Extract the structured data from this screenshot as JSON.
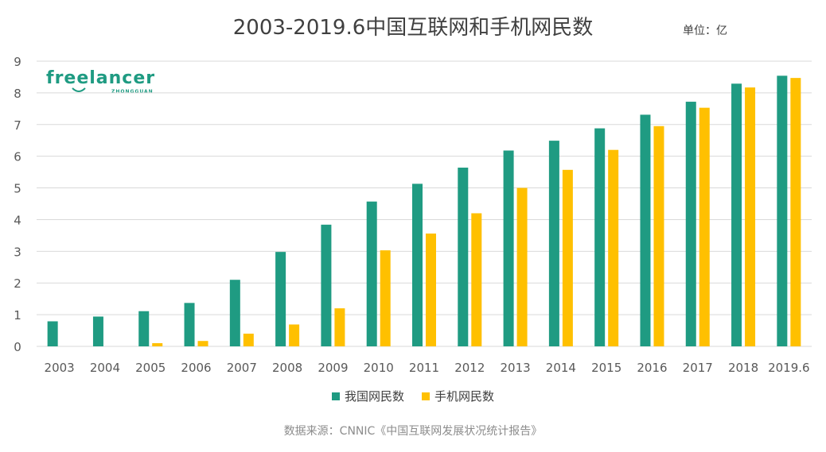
{
  "title": "2003-2019.6中国互联网和手机网民数",
  "unit": "单位：亿",
  "logo": {
    "text": "freelancer",
    "subtext": "ZHONGGUAN"
  },
  "source": "数据来源：CNNIC《中国互联网发展状况统计报告》",
  "colors": {
    "series1": "#1f9b82",
    "series2": "#ffc000",
    "grid": "#d9d9d9",
    "axis_text": "#595959"
  },
  "chart_data": {
    "type": "bar",
    "title": "2003-2019.6中国互联网和手机网民数",
    "xlabel": "",
    "ylabel": "",
    "unit": "单位：亿",
    "ylim": [
      0,
      9
    ],
    "yticks": [
      0,
      1,
      2,
      3,
      4,
      5,
      6,
      7,
      8,
      9
    ],
    "grid": true,
    "legend_position": "bottom",
    "categories": [
      "2003",
      "2004",
      "2005",
      "2006",
      "2007",
      "2008",
      "2009",
      "2010",
      "2011",
      "2012",
      "2013",
      "2014",
      "2015",
      "2016",
      "2017",
      "2018",
      "2019.6"
    ],
    "series": [
      {
        "name": "我国网民数",
        "color": "#1f9b82",
        "values": [
          0.79,
          0.94,
          1.11,
          1.37,
          2.1,
          2.98,
          3.84,
          4.57,
          5.13,
          5.64,
          6.18,
          6.49,
          6.88,
          7.31,
          7.72,
          8.29,
          8.54
        ]
      },
      {
        "name": "手机网民数",
        "color": "#ffc000",
        "values": [
          0,
          0,
          0.1,
          0.17,
          0.4,
          0.69,
          1.2,
          3.03,
          3.56,
          4.2,
          5.0,
          5.57,
          6.2,
          6.95,
          7.53,
          8.17,
          8.47
        ]
      }
    ]
  }
}
